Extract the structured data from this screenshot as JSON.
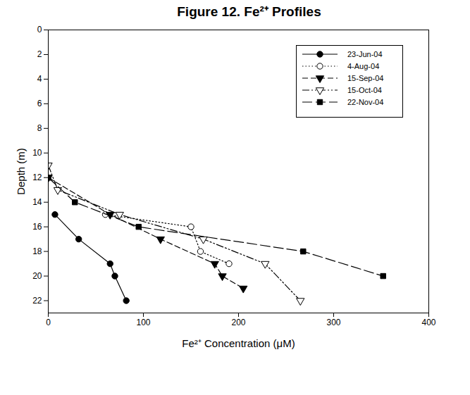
{
  "chart_data": {
    "type": "line",
    "title": "Figure 12. Fe²⁺ Profiles",
    "x_label": "Fe²⁺ Concentration (μM)",
    "y_label": "Depth (m)",
    "xlim": [
      0,
      400
    ],
    "xticks": [
      0,
      100,
      200,
      300,
      400
    ],
    "ylim": [
      0,
      23
    ],
    "yticks": [
      0,
      2,
      4,
      6,
      8,
      10,
      12,
      14,
      16,
      18,
      20,
      22
    ],
    "legend": "top-right",
    "grid": false,
    "series": [
      {
        "name": "23-Jun-04",
        "color": "#000000",
        "marker": "circle",
        "line_style": "solid",
        "x": [
          7,
          32,
          65,
          70,
          82
        ],
        "values": [
          15,
          17,
          19,
          20,
          22
        ]
      },
      {
        "name": "4-Aug-04",
        "color": "#000000",
        "marker": "circle-open",
        "line_style": "dotted",
        "x": [
          60,
          150,
          160,
          190
        ],
        "values": [
          15,
          16,
          18,
          19
        ]
      },
      {
        "name": "15-Sep-04",
        "color": "#000000",
        "marker": "triangle-down",
        "line_style": "dashed",
        "x": [
          0,
          65,
          118,
          175,
          183,
          205
        ],
        "values": [
          12,
          15,
          17,
          19,
          20,
          21
        ]
      },
      {
        "name": "15-Oct-04",
        "color": "#000000",
        "marker": "triangle-down-open",
        "line_style": "dash-dot-dot",
        "x": [
          0,
          10,
          75,
          163,
          228,
          265
        ],
        "values": [
          11,
          13,
          15,
          17,
          19,
          22
        ]
      },
      {
        "name": "22-Nov-04",
        "color": "#000000",
        "marker": "square",
        "line_style": "long-dash",
        "x": [
          0,
          28,
          95,
          268,
          352
        ],
        "values": [
          12,
          14,
          16,
          18,
          20
        ]
      }
    ]
  }
}
